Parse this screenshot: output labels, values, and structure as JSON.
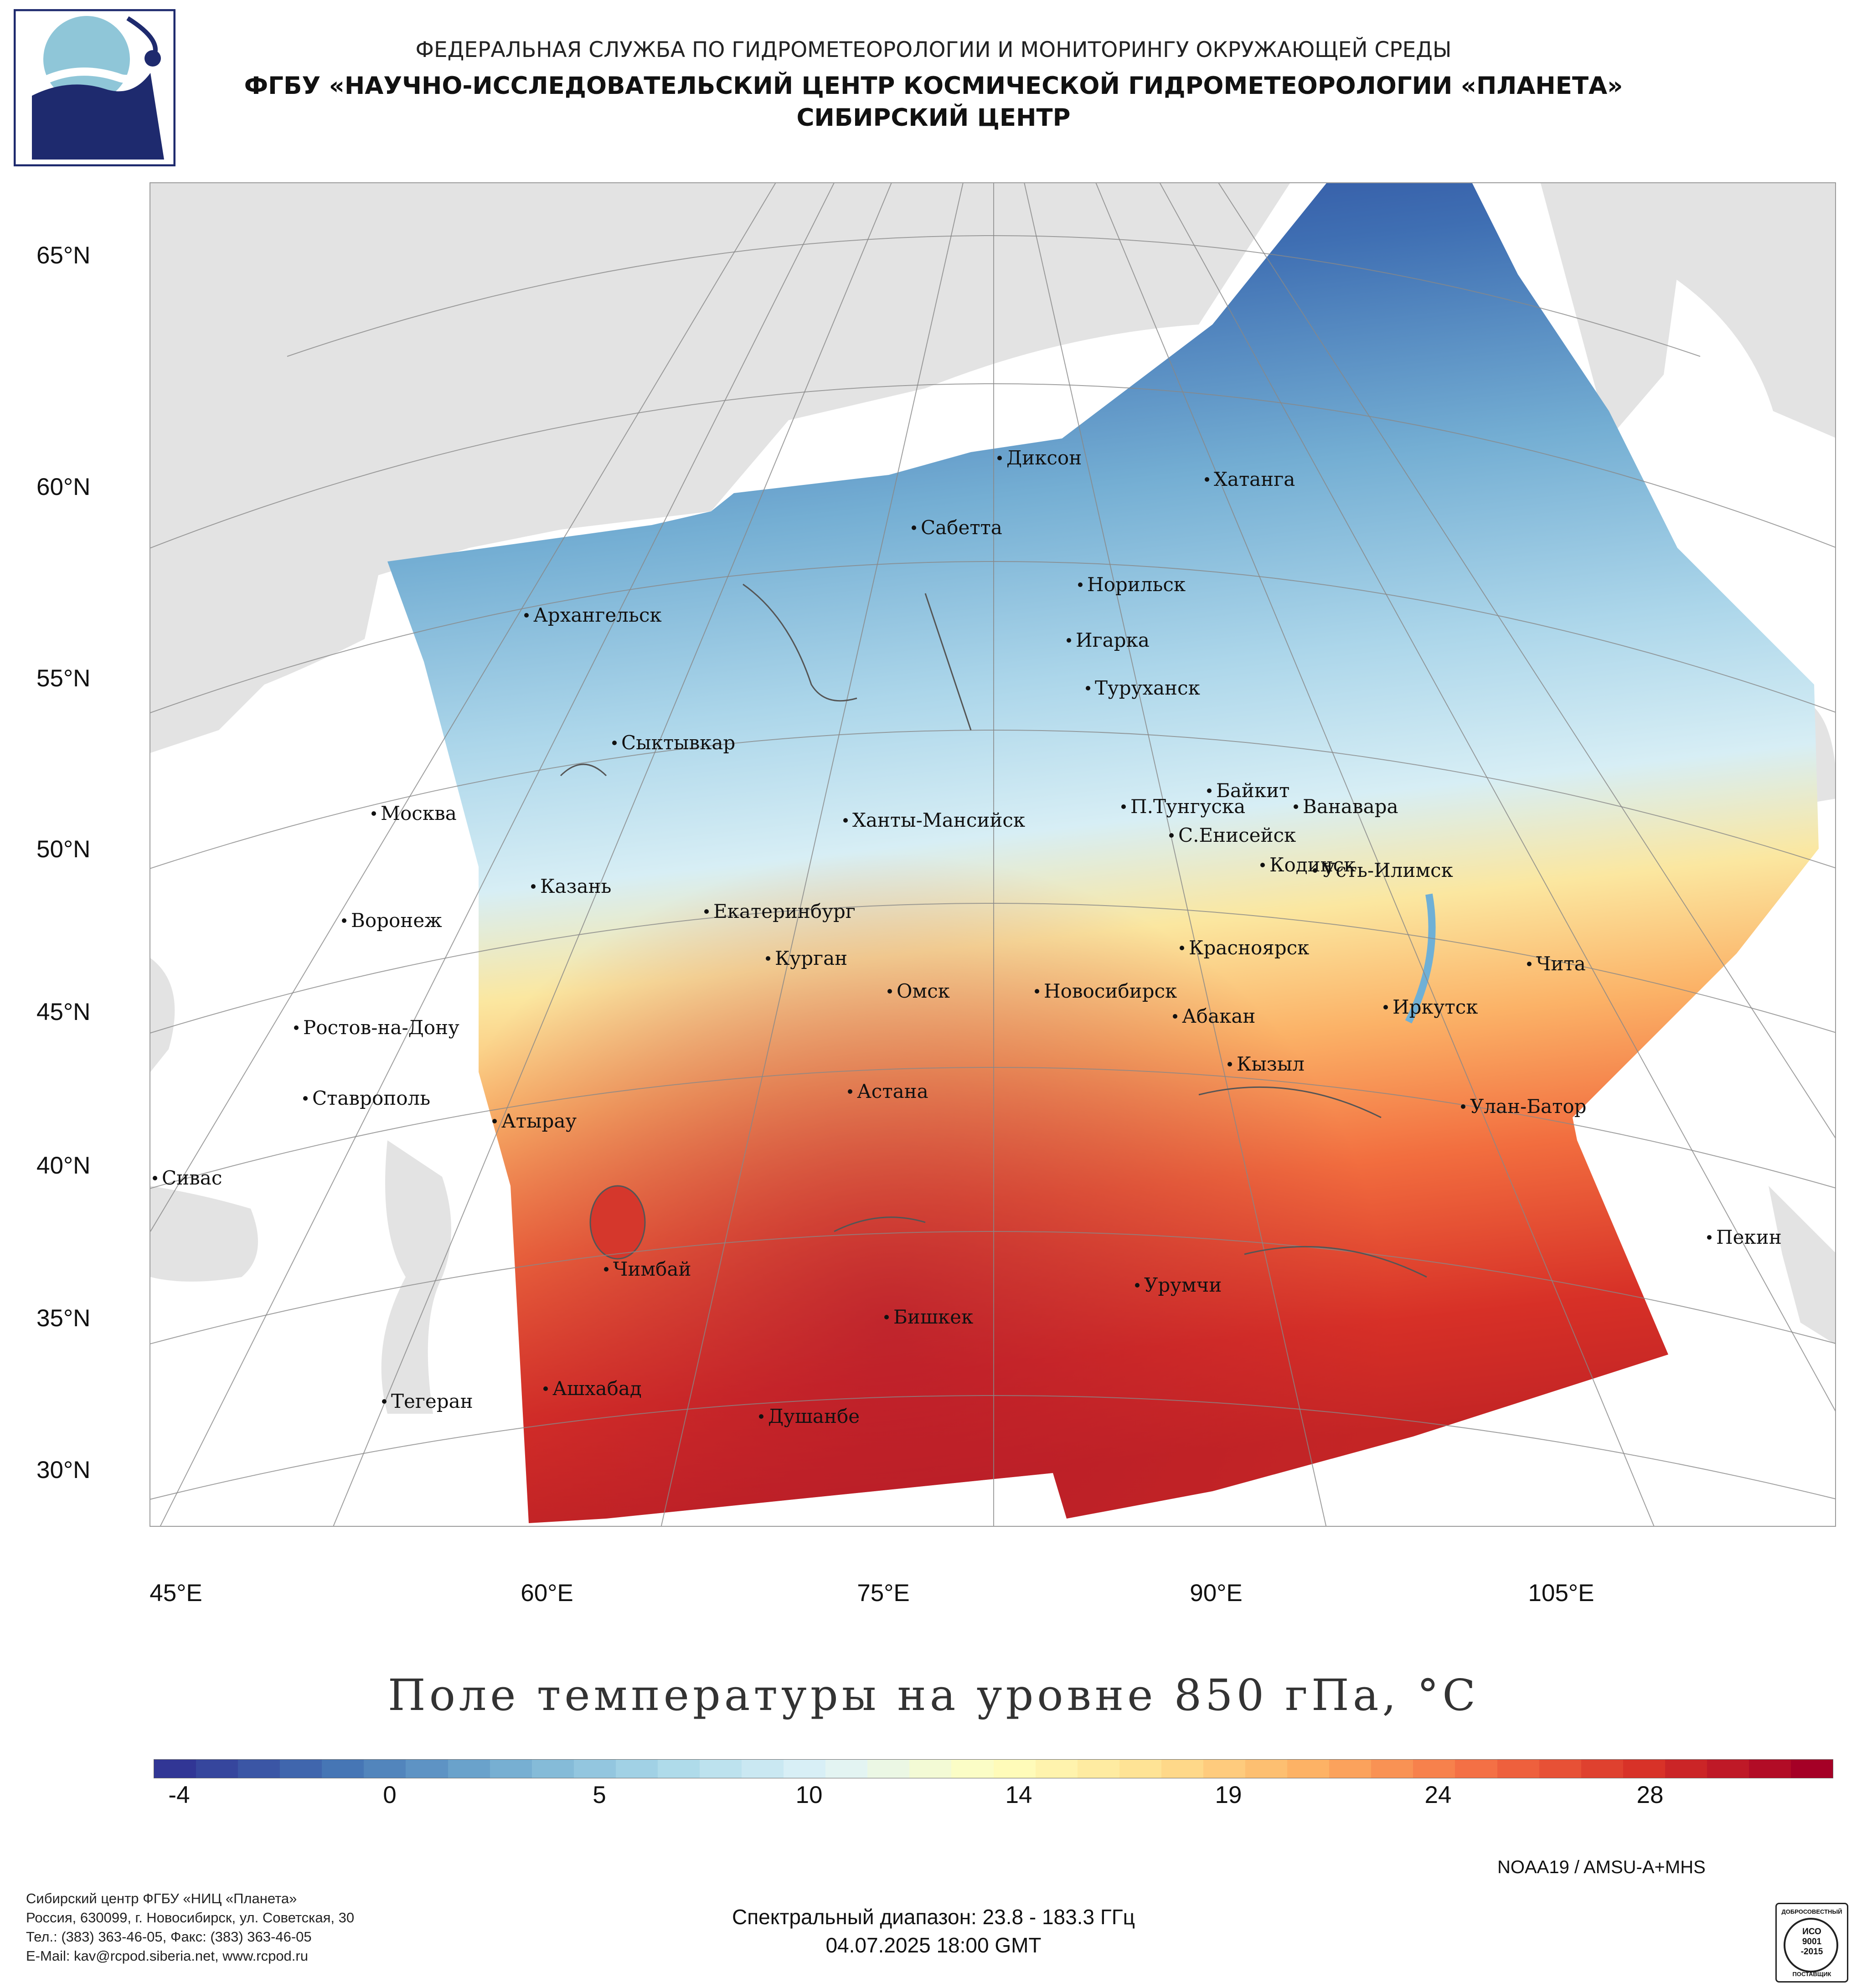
{
  "header": {
    "line1": "ФЕДЕРАЛЬНАЯ СЛУЖБА ПО ГИДРОМЕТЕОРОЛОГИИ И МОНИТОРИНГУ ОКРУЖАЮЩЕЙ СРЕДЫ",
    "line2": "ФГБУ «НАУЧНО-ИССЛЕДОВАТЕЛЬСКИЙ ЦЕНТР КОСМИЧЕСКОЙ ГИДРОМЕТЕОРОЛОГИИ «ПЛАНЕТА»",
    "line3": "СИБИРСКИЙ ЦЕНТР"
  },
  "map": {
    "lat_labels": [
      "65°N",
      "60°N",
      "55°N",
      "50°N",
      "45°N",
      "40°N",
      "35°N",
      "30°N"
    ],
    "lon_labels": [
      "45°E",
      "60°E",
      "75°E",
      "90°E",
      "105°E"
    ],
    "cities": [
      "Диксон",
      "Хатанга",
      "Сабетта",
      "Норильск",
      "Архангельск",
      "Игарка",
      "Туруханск",
      "Сыктывкар",
      "Байкит",
      "Москва",
      "П.Тунгуска",
      "Ванавара",
      "Ханты-Мансийск",
      "С.Енисейск",
      "Казань",
      "Кодинск",
      "Усть-Илимск",
      "Екатеринбург",
      "Воронеж",
      "Красноярск",
      "Курган",
      "Чита",
      "Омск",
      "Новосибирск",
      "Иркутск",
      "Абакан",
      "Ростов-на-Дону",
      "Кызыл",
      "Ставрополь",
      "Астана",
      "Улан-Батор",
      "Атырау",
      "Сивас",
      "Пекин",
      "Чимбай",
      "Урумчи",
      "Бишкек",
      "Ашхабад",
      "Тегеран",
      "Душанбе"
    ]
  },
  "legend": {
    "title": "Поле температуры на уровне 850 гПа, °C",
    "ticks": [
      "-4",
      "0",
      "5",
      "10",
      "14",
      "19",
      "24",
      "28"
    ],
    "colors": [
      "#313695",
      "#4575b4",
      "#74add1",
      "#abd9e9",
      "#e0f3f8",
      "#ffffbf",
      "#fee090",
      "#fdae61",
      "#f46d43",
      "#d73027",
      "#a50026"
    ]
  },
  "footer": {
    "satellite": "NOAA19 / AMSU-A+MHS",
    "org_lines": [
      "Сибирский центр ФГБУ «НИЦ «Планета»",
      "Россия, 630099, г. Новосибирск, ул. Советская, 30",
      "Тел.: (383) 363-46-05, Факс: (383) 363-46-05",
      "E-Mail: kav@rcpod.siberia.net, www.rcpod.ru"
    ],
    "spectral": "Спектральный диапазон: 23.8 - 183.3 ГГц",
    "datetime": "04.07.2025 18:00 GMT",
    "iso_lines": [
      "ДОБРОСОВЕСТНЫЙ",
      "ИСО",
      "9001",
      "-2015",
      "ПОСТАВЩИК"
    ]
  }
}
